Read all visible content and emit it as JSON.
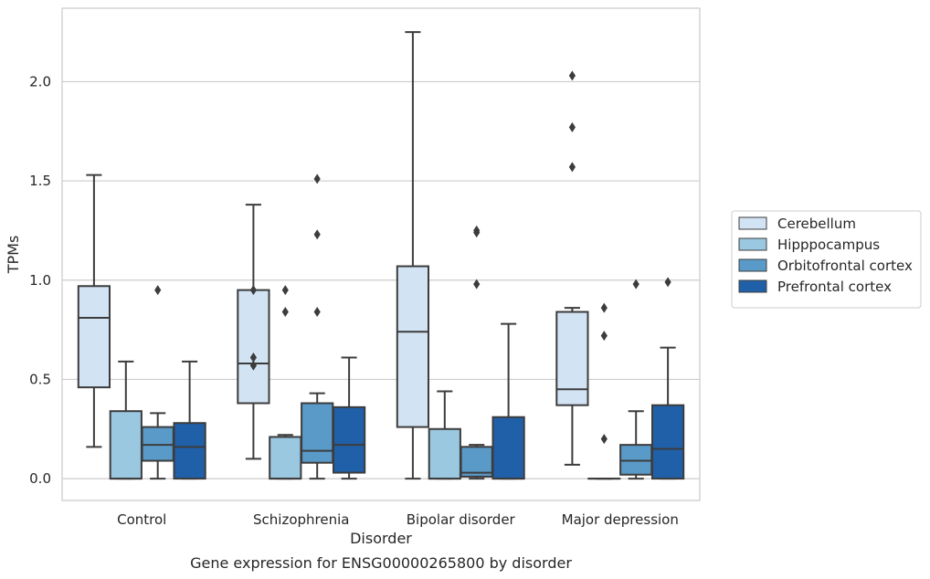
{
  "caption": "Gene expression for ENSG00000265800 by disorder",
  "chart_data": {
    "type": "boxplot",
    "xlabel": "Disorder",
    "ylabel": "TPMs",
    "ylim": [
      -0.11,
      2.37
    ],
    "yticks": [
      0.0,
      0.5,
      1.0,
      1.5,
      2.0
    ],
    "ytick_labels": [
      "0.0",
      "0.5",
      "1.0",
      "1.5",
      "2.0"
    ],
    "grid": "horizontal",
    "legend_position": "right",
    "categories": [
      "Control",
      "Schizophrenia",
      "Bipolar disorder",
      "Major depression"
    ],
    "series": [
      {
        "name": "Cerebellum",
        "color": "#d2e3f3",
        "boxes": [
          {
            "whislo": 0.16,
            "q1": 0.46,
            "med": 0.81,
            "q3": 0.97,
            "whishi": 1.53,
            "fliers": []
          },
          {
            "whislo": 0.1,
            "q1": 0.38,
            "med": 0.58,
            "q3": 0.95,
            "whishi": 1.38,
            "fliers": [
              0.95,
              0.61,
              0.57
            ]
          },
          {
            "whislo": 0.0,
            "q1": 0.26,
            "med": 0.74,
            "q3": 1.07,
            "whishi": 2.25,
            "fliers": []
          },
          {
            "whislo": 0.07,
            "q1": 0.37,
            "med": 0.45,
            "q3": 0.84,
            "whishi": 0.86,
            "fliers": [
              2.03,
              1.77,
              1.57
            ]
          }
        ]
      },
      {
        "name": "Hipppocampus",
        "color": "#9ac8e0",
        "boxes": [
          {
            "whislo": 0.0,
            "q1": 0.0,
            "med": 0.0,
            "q3": 0.34,
            "whishi": 0.59,
            "fliers": []
          },
          {
            "whislo": 0.0,
            "q1": 0.0,
            "med": 0.0,
            "q3": 0.21,
            "whishi": 0.22,
            "fliers": [
              0.95,
              0.84
            ]
          },
          {
            "whislo": 0.0,
            "q1": 0.0,
            "med": 0.0,
            "q3": 0.25,
            "whishi": 0.44,
            "fliers": []
          },
          {
            "whislo": 0.0,
            "q1": 0.0,
            "med": 0.0,
            "q3": 0.0,
            "whishi": 0.0,
            "fliers": [
              0.86,
              0.72,
              0.2
            ]
          }
        ]
      },
      {
        "name": "Orbitofrontal cortex",
        "color": "#5a9ac8",
        "boxes": [
          {
            "whislo": 0.0,
            "q1": 0.09,
            "med": 0.17,
            "q3": 0.26,
            "whishi": 0.33,
            "fliers": [
              0.95
            ]
          },
          {
            "whislo": 0.0,
            "q1": 0.08,
            "med": 0.14,
            "q3": 0.38,
            "whishi": 0.43,
            "fliers": [
              1.51,
              1.23,
              0.84
            ]
          },
          {
            "whislo": 0.0,
            "q1": 0.01,
            "med": 0.03,
            "q3": 0.16,
            "whishi": 0.17,
            "fliers": [
              1.25,
              1.24,
              0.98
            ]
          },
          {
            "whislo": 0.0,
            "q1": 0.02,
            "med": 0.09,
            "q3": 0.17,
            "whishi": 0.34,
            "fliers": [
              0.98
            ]
          }
        ]
      },
      {
        "name": "Prefrontal cortex",
        "color": "#2060a8",
        "boxes": [
          {
            "whislo": 0.0,
            "q1": 0.0,
            "med": 0.16,
            "q3": 0.28,
            "whishi": 0.59,
            "fliers": []
          },
          {
            "whislo": 0.0,
            "q1": 0.03,
            "med": 0.17,
            "q3": 0.36,
            "whishi": 0.61,
            "fliers": []
          },
          {
            "whislo": 0.0,
            "q1": 0.0,
            "med": 0.0,
            "q3": 0.31,
            "whishi": 0.78,
            "fliers": []
          },
          {
            "whislo": 0.0,
            "q1": 0.0,
            "med": 0.15,
            "q3": 0.37,
            "whishi": 0.66,
            "fliers": [
              0.99
            ]
          }
        ]
      }
    ]
  }
}
